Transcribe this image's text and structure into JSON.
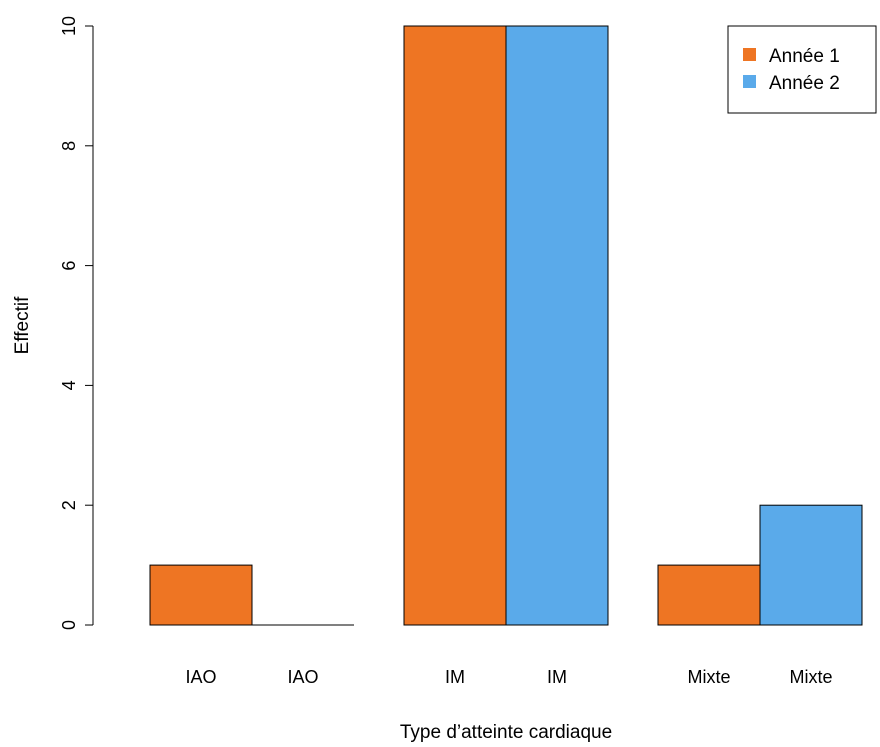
{
  "chart_data": {
    "type": "bar",
    "xlabel": "Type d’atteinte cardiaque",
    "ylabel": "Effectif",
    "ylim": [
      0,
      10
    ],
    "yticks": [
      0,
      2,
      4,
      6,
      8,
      10
    ],
    "grid": false,
    "groups": [
      "IAO",
      "IM",
      "Mixte"
    ],
    "series": [
      {
        "name": "Année 1",
        "color": "#ee7523",
        "values": [
          1,
          10,
          1
        ]
      },
      {
        "name": "Année 2",
        "color": "#5aaaea",
        "values": [
          0,
          10,
          2
        ]
      }
    ],
    "bar_labels": [
      "IAO",
      "IAO",
      "IM",
      "IM",
      "Mixte",
      "Mixte"
    ],
    "legend": {
      "placement": "top-right",
      "entries": [
        "Année 1",
        "Année 2"
      ]
    }
  }
}
